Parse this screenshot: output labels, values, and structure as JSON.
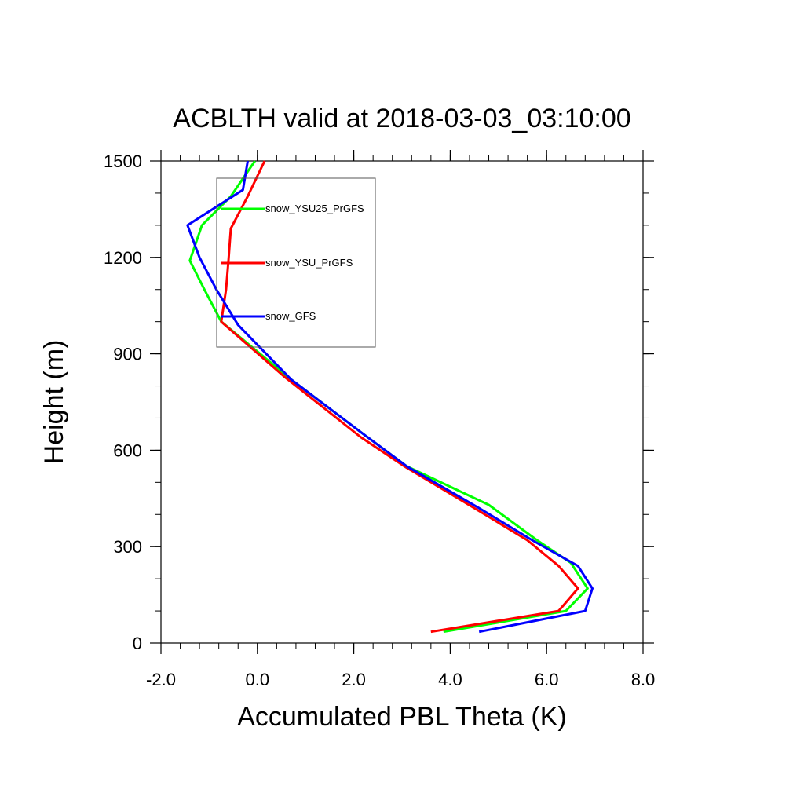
{
  "chart_data": {
    "type": "line",
    "title": "ACBLTH valid at 2018-03-03_03:10:00",
    "xlabel": "Accumulated PBL Theta (K)",
    "ylabel": "Height (m)",
    "xlim": [
      -2.0,
      8.0
    ],
    "ylim": [
      0,
      1500
    ],
    "xticks": [
      -2.0,
      0.0,
      2.0,
      4.0,
      6.0,
      8.0
    ],
    "xtick_labels": [
      "-2.0",
      "0.0",
      "2.0",
      "4.0",
      "6.0",
      "8.0"
    ],
    "yticks": [
      0,
      300,
      600,
      900,
      1200,
      1500
    ],
    "ytick_labels": [
      "0",
      "300",
      "600",
      "900",
      "1200",
      "1500"
    ],
    "x_minor_step": 0.4,
    "y_minor_step": 100,
    "grid": false,
    "legend_position": "top-left",
    "series": [
      {
        "name": "snow_YSU25_PrGFS",
        "color": "#00ff00",
        "x": [
          3.86,
          6.4,
          6.85,
          6.5,
          5.8,
          4.8,
          3.1,
          2.2,
          0.7,
          -0.75,
          -1.1,
          -1.4,
          -1.15,
          -0.55,
          -0.05
        ],
        "y": [
          35,
          100,
          170,
          250,
          320,
          430,
          550,
          650,
          820,
          1000,
          1100,
          1190,
          1300,
          1390,
          1500
        ]
      },
      {
        "name": "snow_YSU_PrGFS",
        "color": "#ff0000",
        "x": [
          3.6,
          6.25,
          6.65,
          6.25,
          5.6,
          4.5,
          3.05,
          2.15,
          0.55,
          -0.75,
          -0.65,
          -0.6,
          -0.55,
          -0.2,
          0.15
        ],
        "y": [
          35,
          100,
          170,
          240,
          320,
          420,
          550,
          640,
          830,
          1000,
          1100,
          1190,
          1290,
          1390,
          1500
        ]
      },
      {
        "name": "snow_GFS",
        "color": "#0000ff",
        "x": [
          4.6,
          6.8,
          6.95,
          6.65,
          5.7,
          4.6,
          3.1,
          2.2,
          0.7,
          -0.4,
          -0.85,
          -1.2,
          -1.45,
          -0.3,
          -0.2
        ],
        "y": [
          35,
          100,
          170,
          240,
          320,
          420,
          550,
          650,
          820,
          990,
          1100,
          1200,
          1300,
          1410,
          1500
        ]
      }
    ]
  }
}
